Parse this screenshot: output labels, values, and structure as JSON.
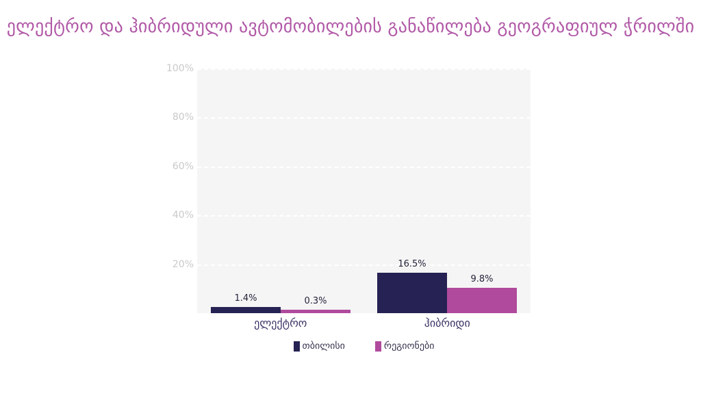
{
  "chart_data": {
    "type": "bar",
    "title": "ელექტრო და ჰიბრიდული ავტომობილების განაწილება გეოგრაფიულ ჭრილში",
    "categories": [
      "ელექტრო",
      "ჰიბრიდი"
    ],
    "series": [
      {
        "name": "თბილისი",
        "color": "#262253",
        "values": [
          1.4,
          16.5
        ],
        "data_labels": [
          "1.4%",
          "16.5%"
        ]
      },
      {
        "name": "რეგიონები",
        "color": "#b04a9c",
        "values": [
          0.3,
          9.8
        ],
        "data_labels": [
          "0.3%",
          "9.8%"
        ]
      }
    ],
    "xlabel": "",
    "ylabel": "",
    "ylim": [
      0,
      100
    ],
    "y_ticks": [
      {
        "value": 100,
        "label": "100%"
      },
      {
        "value": 80,
        "label": "80%"
      },
      {
        "value": 60,
        "label": "60%"
      },
      {
        "value": 40,
        "label": "40%"
      },
      {
        "value": 20,
        "label": "20%"
      }
    ],
    "grid": true,
    "legend_position": "bottom"
  },
  "colors": {
    "title": "#b159a7",
    "plot_background": "#f5f5f5",
    "grid_line": "#ffffff",
    "axis_tick_label": "#c9c9c9",
    "category_label": "#3c3366",
    "data_label": "#23233a"
  },
  "legend": {
    "items": [
      {
        "label": "თბილისი",
        "color": "#262253"
      },
      {
        "label": "რეგიონები",
        "color": "#b04a9c"
      }
    ]
  }
}
